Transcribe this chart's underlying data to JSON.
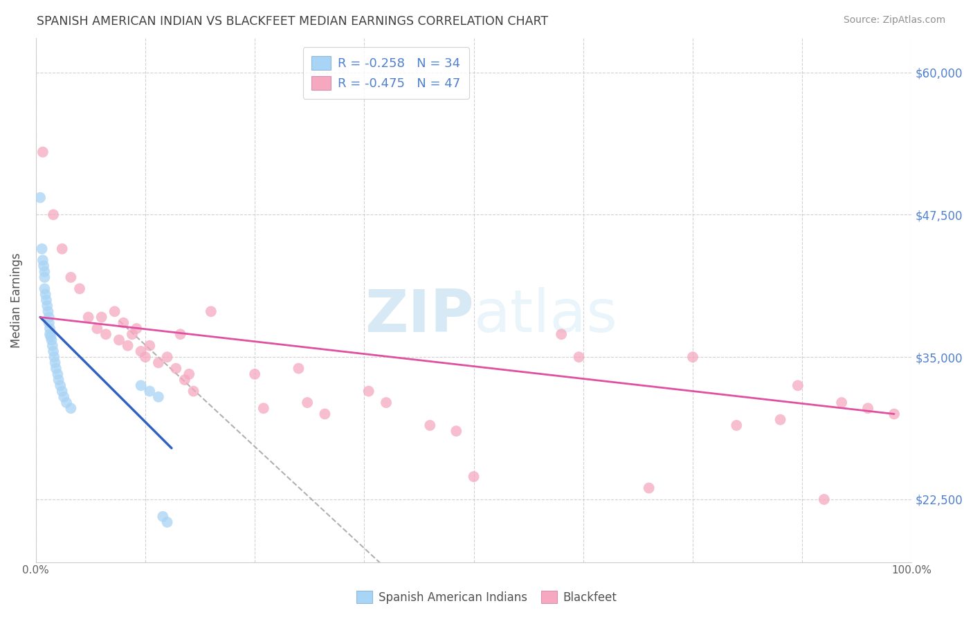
{
  "title": "SPANISH AMERICAN INDIAN VS BLACKFEET MEDIAN EARNINGS CORRELATION CHART",
  "source": "Source: ZipAtlas.com",
  "ylabel": "Median Earnings",
  "yticks_labels": [
    "$22,500",
    "$35,000",
    "$47,500",
    "$60,000"
  ],
  "yticks_values": [
    22500,
    35000,
    47500,
    60000
  ],
  "ymin": 17000,
  "ymax": 63000,
  "xmin": 0.0,
  "xmax": 1.0,
  "legend_r1": "R = -0.258",
  "legend_n1": "N = 34",
  "legend_r2": "R = -0.475",
  "legend_n2": "N = 47",
  "color_blue": "#A8D4F5",
  "color_pink": "#F5A8C0",
  "color_blue_line": "#3060C0",
  "color_pink_line": "#E050A0",
  "color_dashed": "#B0B0B0",
  "color_axis_right": "#5080D0",
  "watermark_zip": "ZIP",
  "watermark_atlas": "atlas",
  "blue_scatter_x": [
    0.005,
    0.007,
    0.008,
    0.009,
    0.01,
    0.01,
    0.01,
    0.011,
    0.012,
    0.013,
    0.014,
    0.015,
    0.015,
    0.016,
    0.016,
    0.017,
    0.018,
    0.019,
    0.02,
    0.021,
    0.022,
    0.023,
    0.025,
    0.026,
    0.028,
    0.03,
    0.032,
    0.035,
    0.04,
    0.12,
    0.13,
    0.14,
    0.145,
    0.15
  ],
  "blue_scatter_y": [
    49000,
    44500,
    43500,
    43000,
    42500,
    42000,
    41000,
    40500,
    40000,
    39500,
    39000,
    38500,
    38000,
    37500,
    37000,
    36800,
    36500,
    36000,
    35500,
    35000,
    34500,
    34000,
    33500,
    33000,
    32500,
    32000,
    31500,
    31000,
    30500,
    32500,
    32000,
    31500,
    21000,
    20500
  ],
  "pink_scatter_x": [
    0.008,
    0.02,
    0.03,
    0.04,
    0.05,
    0.06,
    0.07,
    0.075,
    0.08,
    0.09,
    0.095,
    0.1,
    0.105,
    0.11,
    0.115,
    0.12,
    0.125,
    0.13,
    0.14,
    0.15,
    0.16,
    0.165,
    0.17,
    0.175,
    0.18,
    0.2,
    0.25,
    0.26,
    0.3,
    0.31,
    0.33,
    0.38,
    0.4,
    0.45,
    0.48,
    0.5,
    0.6,
    0.62,
    0.7,
    0.75,
    0.8,
    0.85,
    0.87,
    0.9,
    0.92,
    0.95,
    0.98
  ],
  "pink_scatter_y": [
    53000,
    47500,
    44500,
    42000,
    41000,
    38500,
    37500,
    38500,
    37000,
    39000,
    36500,
    38000,
    36000,
    37000,
    37500,
    35500,
    35000,
    36000,
    34500,
    35000,
    34000,
    37000,
    33000,
    33500,
    32000,
    39000,
    33500,
    30500,
    34000,
    31000,
    30000,
    32000,
    31000,
    29000,
    28500,
    24500,
    37000,
    35000,
    23500,
    35000,
    29000,
    29500,
    32500,
    22500,
    31000,
    30500,
    30000
  ],
  "blue_line_x": [
    0.005,
    0.155
  ],
  "blue_line_y": [
    38500,
    27000
  ],
  "pink_line_x": [
    0.005,
    0.98
  ],
  "pink_line_y": [
    38500,
    30000
  ],
  "dashed_line_x": [
    0.095,
    0.42
  ],
  "dashed_line_y": [
    38200,
    15000
  ]
}
